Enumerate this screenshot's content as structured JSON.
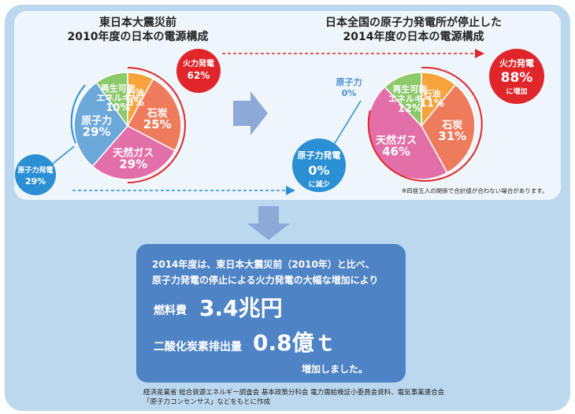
{
  "titles": {
    "left_line1": "東日本大震災前",
    "left_line2": "2010年度の日本の電源構成",
    "right_line1": "日本全国の原子力発電所が停止した",
    "right_line2": "2014年度の日本の電源構成"
  },
  "chart_data": [
    {
      "type": "pie",
      "title": "2010年度の日本の電源構成",
      "slices": [
        {
          "label": "石油",
          "value": 8,
          "display": "8%",
          "color": "#f5a33a"
        },
        {
          "label": "石炭",
          "value": 25,
          "display": "25%",
          "color": "#ee7c5c"
        },
        {
          "label": "天然ガス",
          "value": 29,
          "display": "29%",
          "color": "#e36fa8"
        },
        {
          "label": "原子力",
          "value": 29,
          "display": "29%",
          "color": "#6da8db"
        },
        {
          "label": "再生可能エネルギー",
          "value": 10,
          "display": "10%",
          "color": "#8cc96a"
        }
      ]
    },
    {
      "type": "pie",
      "title": "2014年度の日本の電源構成",
      "slices": [
        {
          "label": "石油",
          "value": 11,
          "display": "11%",
          "color": "#f5a33a"
        },
        {
          "label": "石炭",
          "value": 31,
          "display": "31%",
          "color": "#ee7c5c"
        },
        {
          "label": "天然ガス",
          "value": 46,
          "display": "46%",
          "color": "#e36fa8"
        },
        {
          "label": "原子力",
          "value": 0,
          "display": "0%",
          "color": "#6da8db"
        },
        {
          "label": "再生可能エネルギー",
          "value": 12,
          "display": "12%",
          "color": "#8cc96a"
        }
      ]
    }
  ],
  "callouts": {
    "left_thermal_label": "火力発電",
    "left_thermal_value": "62%",
    "left_nuclear_label": "原子力発電",
    "left_nuclear_value": "29%",
    "right_thermal_label": "火力発電",
    "right_thermal_value": "88%",
    "right_thermal_note": "に増加",
    "right_nuclear_label": "原子力発電",
    "right_nuclear_value": "0%",
    "right_nuclear_note": "に減少"
  },
  "note": "※四捨五入の関係で合計値が合わない場合があります。",
  "summary": {
    "line1": "2014年度は、東日本大震災前（2010年）と比べ、",
    "line2": "原子力発電の停止による火力発電の大幅な増加により",
    "fuel_label": "燃料費",
    "fuel_value": "3.4兆円",
    "co2_label": "二酸化炭素排出量",
    "co2_value": "0.8億ｔ",
    "closing": "増加しました。"
  },
  "source": {
    "line1": "経済産業省 総合資源エネルギー調査会 基本政策分科会 電力需給検証小委員会資料、電気事業連合会",
    "line2": "「原子力コンセンサス」などをもとに作成"
  },
  "colors": {
    "thermal_red": "#e0262b",
    "nuclear_blue": "#2a8fd3",
    "arrow_blue": "#8ea9d8",
    "summary_box": "#4e83c5",
    "background": "#bcd8ef"
  }
}
